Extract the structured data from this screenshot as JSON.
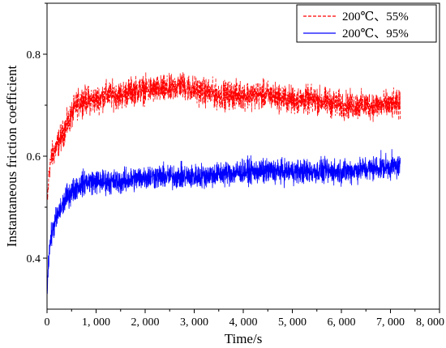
{
  "chart_data": {
    "type": "line",
    "xlabel": "Time/s",
    "ylabel": "Instantaneous friction coefficient",
    "xlim": [
      0,
      8000
    ],
    "ylim": [
      0.3,
      0.9
    ],
    "xticks": [
      0,
      1000,
      2000,
      3000,
      4000,
      5000,
      6000,
      7000,
      8000
    ],
    "xtick_labels": [
      "0",
      "1, 000",
      "2, 000",
      "3, 000",
      "4, 000",
      "5, 000",
      "6, 000",
      "7, 000",
      "8, 000"
    ],
    "yticks": [
      0.4,
      0.6,
      0.8
    ],
    "ytick_labels": [
      "0.4",
      "0.6",
      "0.8"
    ],
    "grid": false,
    "legend_position": "top-right",
    "series": [
      {
        "name": "200℃、55%",
        "color": "#ff0000",
        "dash": "dashed",
        "x_end": 7200,
        "x": [
          0,
          50,
          100,
          200,
          300,
          400,
          500,
          600,
          700,
          800,
          1000,
          1200,
          1500,
          1800,
          2000,
          2200,
          2500,
          2700,
          3000,
          3500,
          4000,
          4500,
          5000,
          5500,
          6000,
          6500,
          7000,
          7200
        ],
        "values": [
          0.5,
          0.58,
          0.6,
          0.62,
          0.64,
          0.66,
          0.68,
          0.7,
          0.71,
          0.71,
          0.71,
          0.72,
          0.72,
          0.73,
          0.73,
          0.73,
          0.73,
          0.74,
          0.73,
          0.72,
          0.72,
          0.72,
          0.71,
          0.71,
          0.7,
          0.7,
          0.7,
          0.7
        ],
        "noise": 0.025
      },
      {
        "name": "200℃、95%",
        "color": "#0000ff",
        "dash": "solid",
        "x_end": 7200,
        "x": [
          0,
          20,
          50,
          100,
          200,
          300,
          400,
          500,
          600,
          800,
          1000,
          1500,
          2000,
          2500,
          3000,
          4000,
          5000,
          6000,
          7000,
          7200
        ],
        "values": [
          0.32,
          0.38,
          0.42,
          0.45,
          0.48,
          0.5,
          0.52,
          0.53,
          0.54,
          0.55,
          0.55,
          0.55,
          0.56,
          0.56,
          0.56,
          0.57,
          0.57,
          0.57,
          0.58,
          0.58
        ],
        "noise": 0.022
      }
    ]
  }
}
